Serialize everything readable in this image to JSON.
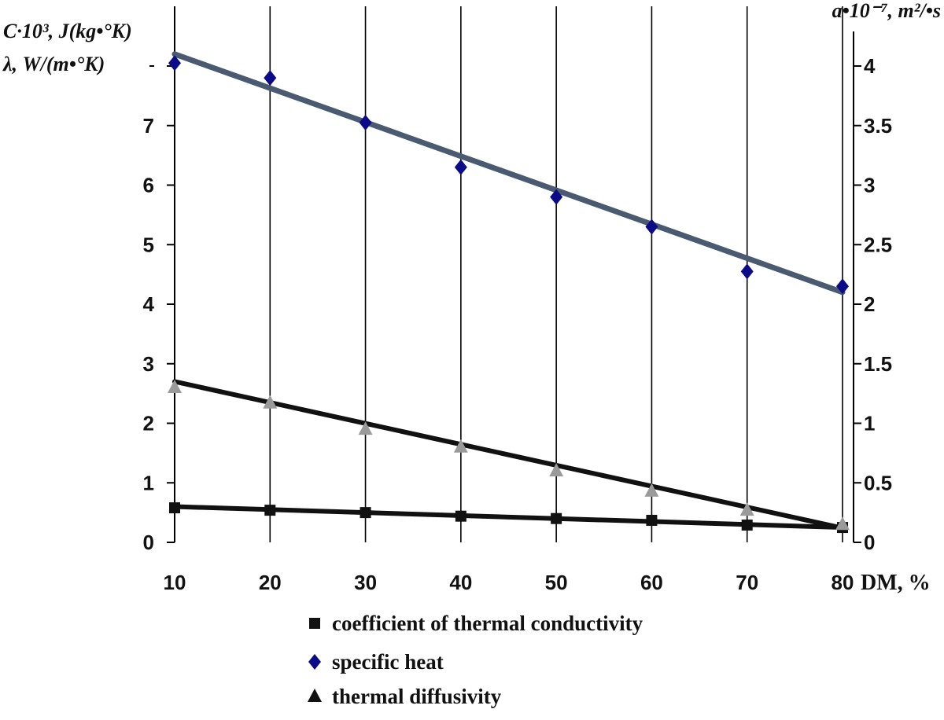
{
  "chart_data": {
    "type": "scatter",
    "left_axis_title_line1": "C·10³,  J(kg•°K)",
    "left_axis_title_line2": "λ, W/(m•°K)",
    "right_axis_title": "a•10⁻⁷, m²/•s",
    "xlabel": "DM, %",
    "x": [
      10,
      20,
      30,
      40,
      50,
      60,
      70,
      80
    ],
    "xlim": [
      10,
      80
    ],
    "ylim_left": [
      0,
      8
    ],
    "ylim_right": [
      0,
      4
    ],
    "yticks_left": [
      "0",
      "1",
      "2",
      "3",
      "4",
      "5",
      "6",
      "7",
      ""
    ],
    "yticks_right": [
      "0",
      "0.5",
      "1",
      "1.5",
      "2",
      "2.5",
      "3",
      "3.5",
      "4"
    ],
    "xticks": [
      "10",
      "20",
      "30",
      "40",
      "50",
      "60",
      "70",
      "80"
    ],
    "grid": "vertical",
    "legend_position": "bottom",
    "series": [
      {
        "name": "coefficient of thermal conductivity",
        "axis": "left",
        "marker": "square",
        "color": "#111111",
        "values": [
          0.58,
          0.54,
          0.5,
          0.44,
          0.4,
          0.37,
          0.29,
          0.25
        ],
        "trend": [
          0.6,
          0.25
        ]
      },
      {
        "name": "specific heat",
        "axis": "left",
        "marker": "diamond",
        "color": "#0b0b8a",
        "trend_color": "#4a5a70",
        "values": [
          8.05,
          7.8,
          7.05,
          6.3,
          5.8,
          5.3,
          4.55,
          4.3
        ],
        "trend": [
          8.2,
          4.2
        ]
      },
      {
        "name": "thermal diffusivity",
        "axis": "right",
        "marker": "triangle",
        "color": "#111111",
        "marker_color": "#9a9a9a",
        "values": [
          1.3,
          1.17,
          0.95,
          0.8,
          0.6,
          0.43,
          0.27,
          0.15
        ],
        "trend": [
          1.35,
          0.12
        ]
      }
    ]
  }
}
